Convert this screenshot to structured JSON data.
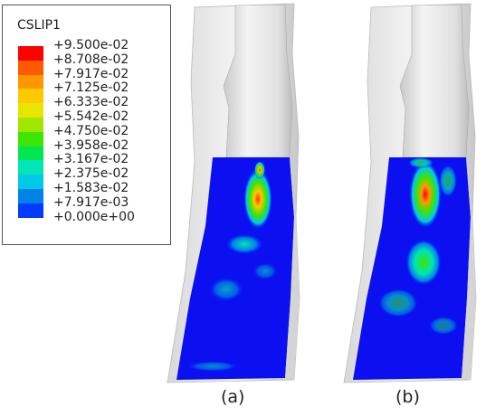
{
  "legend": {
    "title": "CSLIP1",
    "entries": [
      {
        "label": "+9.500e-02",
        "color": "#ff0000"
      },
      {
        "label": "+8.708e-02",
        "color": "#ff5a00"
      },
      {
        "label": "+7.917e-02",
        "color": "#ff9800"
      },
      {
        "label": "+7.125e-02",
        "color": "#ffc800"
      },
      {
        "label": "+6.333e-02",
        "color": "#e6e600"
      },
      {
        "label": "+5.542e-02",
        "color": "#a0e600"
      },
      {
        "label": "+4.750e-02",
        "color": "#3ce600"
      },
      {
        "label": "+3.958e-02",
        "color": "#00e650"
      },
      {
        "label": "+3.167e-02",
        "color": "#00e6b4"
      },
      {
        "label": "+2.375e-02",
        "color": "#00c8e6"
      },
      {
        "label": "+1.583e-02",
        "color": "#0082e6"
      },
      {
        "label": "+7.917e-03",
        "color": "#003cff"
      },
      {
        "label": "+0.000e+00",
        "color": "#0000ff"
      }
    ]
  },
  "panels": [
    {
      "label": "(a)"
    },
    {
      "label": "(b)"
    }
  ]
}
